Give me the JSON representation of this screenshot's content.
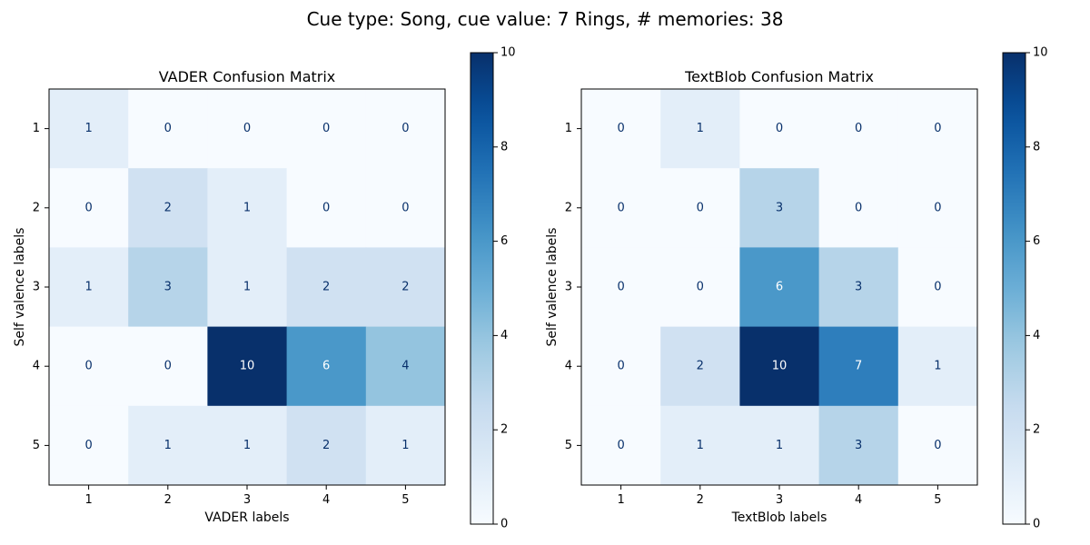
{
  "chart_data": {
    "title": "Cue type: Song, cue value: 7 Rings, # memories: 38",
    "colormap": {
      "name": "Blues",
      "stops": [
        "#f7fbff",
        "#deebf7",
        "#c6dbef",
        "#9ecae1",
        "#6baed6",
        "#4292c6",
        "#2171b5",
        "#08519c",
        "#08306b"
      ]
    },
    "text_colors": {
      "light_cells": "#08306b",
      "dark_cells": "#ffffff"
    },
    "charts": [
      {
        "type": "heatmap",
        "title": "VADER Confusion Matrix",
        "xlabel": "VADER labels",
        "ylabel": "Self valence labels",
        "x_categories": [
          "1",
          "2",
          "3",
          "4",
          "5"
        ],
        "y_categories": [
          "1",
          "2",
          "3",
          "4",
          "5"
        ],
        "matrix": [
          [
            1,
            0,
            0,
            0,
            0
          ],
          [
            0,
            2,
            1,
            0,
            0
          ],
          [
            1,
            3,
            1,
            2,
            2
          ],
          [
            0,
            0,
            10,
            6,
            4
          ],
          [
            0,
            1,
            1,
            2,
            1
          ]
        ],
        "colorbar": {
          "min": 0,
          "max": 10,
          "ticks": [
            "0",
            "2",
            "4",
            "6",
            "8",
            "10"
          ]
        }
      },
      {
        "type": "heatmap",
        "title": "TextBlob Confusion Matrix",
        "xlabel": "TextBlob labels",
        "ylabel": "Self valence labels",
        "x_categories": [
          "1",
          "2",
          "3",
          "4",
          "5"
        ],
        "y_categories": [
          "1",
          "2",
          "3",
          "4",
          "5"
        ],
        "matrix": [
          [
            0,
            1,
            0,
            0,
            0
          ],
          [
            0,
            0,
            3,
            0,
            0
          ],
          [
            0,
            0,
            6,
            3,
            0
          ],
          [
            0,
            2,
            10,
            7,
            1
          ],
          [
            0,
            1,
            1,
            3,
            0
          ]
        ],
        "colorbar": {
          "min": 0,
          "max": 10,
          "ticks": [
            "0",
            "2",
            "4",
            "6",
            "8",
            "10"
          ]
        }
      }
    ]
  }
}
